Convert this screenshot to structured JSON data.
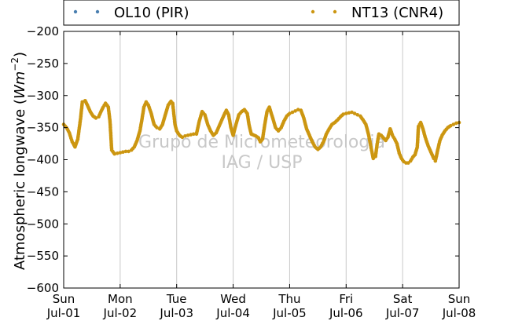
{
  "chart_data": {
    "type": "scatter",
    "ylabel_text": "Atmospheric longwave (",
    "ylabel_unit": "Wm",
    "ylabel_exp": "−2",
    "ylabel_close": ")",
    "ylim": [
      -600,
      -200
    ],
    "yticks": [
      -200,
      -250,
      -300,
      -350,
      -400,
      -450,
      -500,
      -550,
      -600
    ],
    "ytick_labels": [
      "−200",
      "−250",
      "−300",
      "−350",
      "−400",
      "−450",
      "−500",
      "−550",
      "−600"
    ],
    "xlim": [
      0,
      7
    ],
    "xticks": [
      {
        "x": 0,
        "day": "Sun",
        "date": "Jul-01"
      },
      {
        "x": 1,
        "day": "Mon",
        "date": "Jul-02"
      },
      {
        "x": 2,
        "day": "Tue",
        "date": "Jul-03"
      },
      {
        "x": 3,
        "day": "Wed",
        "date": "Jul-04"
      },
      {
        "x": 4,
        "day": "Thu",
        "date": "Jul-05"
      },
      {
        "x": 5,
        "day": "Fri",
        "date": "Jul-06"
      },
      {
        "x": 6,
        "day": "Sat",
        "date": "Jul-07"
      },
      {
        "x": 7,
        "day": "Sun",
        "date": "Jul-08"
      }
    ],
    "grid": "vertical",
    "legend_position": "top",
    "watermark": [
      "Grupo de Micrometeorologia",
      "IAG / USP"
    ],
    "series": [
      {
        "name": "OL10 (PIR)",
        "color": "#4a7fb0",
        "points": []
      },
      {
        "name": "NT13 (CNR4)",
        "color": "#cc9611",
        "points": [
          [
            0.0,
            -345
          ],
          [
            0.05,
            -350
          ],
          [
            0.1,
            -358
          ],
          [
            0.15,
            -372
          ],
          [
            0.2,
            -380
          ],
          [
            0.25,
            -368
          ],
          [
            0.3,
            -335
          ],
          [
            0.33,
            -310
          ],
          [
            0.38,
            -308
          ],
          [
            0.42,
            -315
          ],
          [
            0.47,
            -325
          ],
          [
            0.52,
            -332
          ],
          [
            0.57,
            -335
          ],
          [
            0.62,
            -333
          ],
          [
            0.66,
            -325
          ],
          [
            0.7,
            -318
          ],
          [
            0.74,
            -312
          ],
          [
            0.79,
            -318
          ],
          [
            0.82,
            -340
          ],
          [
            0.85,
            -385
          ],
          [
            0.9,
            -391
          ],
          [
            0.95,
            -390
          ],
          [
            1.0,
            -389
          ],
          [
            1.05,
            -388
          ],
          [
            1.1,
            -387
          ],
          [
            1.15,
            -387
          ],
          [
            1.2,
            -385
          ],
          [
            1.25,
            -380
          ],
          [
            1.3,
            -370
          ],
          [
            1.35,
            -355
          ],
          [
            1.38,
            -340
          ],
          [
            1.42,
            -318
          ],
          [
            1.46,
            -310
          ],
          [
            1.5,
            -315
          ],
          [
            1.55,
            -328
          ],
          [
            1.6,
            -345
          ],
          [
            1.65,
            -350
          ],
          [
            1.7,
            -352
          ],
          [
            1.75,
            -345
          ],
          [
            1.8,
            -330
          ],
          [
            1.85,
            -315
          ],
          [
            1.9,
            -309
          ],
          [
            1.93,
            -312
          ],
          [
            1.97,
            -345
          ],
          [
            2.0,
            -355
          ],
          [
            2.05,
            -362
          ],
          [
            2.1,
            -365
          ],
          [
            2.15,
            -363
          ],
          [
            2.2,
            -362
          ],
          [
            2.25,
            -361
          ],
          [
            2.3,
            -360
          ],
          [
            2.35,
            -360
          ],
          [
            2.4,
            -340
          ],
          [
            2.45,
            -325
          ],
          [
            2.5,
            -330
          ],
          [
            2.55,
            -345
          ],
          [
            2.6,
            -355
          ],
          [
            2.65,
            -362
          ],
          [
            2.7,
            -358
          ],
          [
            2.75,
            -348
          ],
          [
            2.8,
            -338
          ],
          [
            2.85,
            -328
          ],
          [
            2.88,
            -323
          ],
          [
            2.92,
            -330
          ],
          [
            2.96,
            -350
          ],
          [
            3.0,
            -362
          ],
          [
            3.05,
            -345
          ],
          [
            3.1,
            -330
          ],
          [
            3.15,
            -325
          ],
          [
            3.2,
            -322
          ],
          [
            3.25,
            -328
          ],
          [
            3.28,
            -345
          ],
          [
            3.32,
            -360
          ],
          [
            3.4,
            -363
          ],
          [
            3.45,
            -366
          ],
          [
            3.48,
            -372
          ],
          [
            3.52,
            -368
          ],
          [
            3.56,
            -345
          ],
          [
            3.6,
            -325
          ],
          [
            3.64,
            -318
          ],
          [
            3.7,
            -335
          ],
          [
            3.75,
            -350
          ],
          [
            3.8,
            -355
          ],
          [
            3.85,
            -350
          ],
          [
            3.9,
            -340
          ],
          [
            3.95,
            -332
          ],
          [
            4.0,
            -328
          ],
          [
            4.05,
            -326
          ],
          [
            4.1,
            -324
          ],
          [
            4.15,
            -322
          ],
          [
            4.2,
            -323
          ],
          [
            4.25,
            -335
          ],
          [
            4.3,
            -352
          ],
          [
            4.35,
            -362
          ],
          [
            4.4,
            -372
          ],
          [
            4.45,
            -380
          ],
          [
            4.5,
            -384
          ],
          [
            4.55,
            -380
          ],
          [
            4.6,
            -372
          ],
          [
            4.65,
            -360
          ],
          [
            4.7,
            -352
          ],
          [
            4.75,
            -345
          ],
          [
            4.8,
            -342
          ],
          [
            4.85,
            -338
          ],
          [
            4.9,
            -333
          ],
          [
            4.95,
            -329
          ],
          [
            5.0,
            -328
          ],
          [
            5.05,
            -327
          ],
          [
            5.1,
            -326
          ],
          [
            5.15,
            -328
          ],
          [
            5.2,
            -330
          ],
          [
            5.25,
            -332
          ],
          [
            5.3,
            -338
          ],
          [
            5.35,
            -345
          ],
          [
            5.4,
            -362
          ],
          [
            5.45,
            -385
          ],
          [
            5.48,
            -398
          ],
          [
            5.52,
            -395
          ],
          [
            5.55,
            -375
          ],
          [
            5.58,
            -360
          ],
          [
            5.62,
            -362
          ],
          [
            5.66,
            -366
          ],
          [
            5.7,
            -370
          ],
          [
            5.74,
            -365
          ],
          [
            5.78,
            -352
          ],
          [
            5.82,
            -362
          ],
          [
            5.86,
            -368
          ],
          [
            5.9,
            -375
          ],
          [
            5.94,
            -390
          ],
          [
            5.98,
            -398
          ],
          [
            6.02,
            -403
          ],
          [
            6.06,
            -405
          ],
          [
            6.1,
            -405
          ],
          [
            6.14,
            -402
          ],
          [
            6.18,
            -396
          ],
          [
            6.22,
            -392
          ],
          [
            6.26,
            -380
          ],
          [
            6.28,
            -348
          ],
          [
            6.32,
            -342
          ],
          [
            6.36,
            -352
          ],
          [
            6.4,
            -365
          ],
          [
            6.45,
            -378
          ],
          [
            6.5,
            -388
          ],
          [
            6.55,
            -398
          ],
          [
            6.58,
            -402
          ],
          [
            6.62,
            -385
          ],
          [
            6.66,
            -370
          ],
          [
            6.7,
            -362
          ],
          [
            6.75,
            -355
          ],
          [
            6.8,
            -350
          ],
          [
            6.85,
            -347
          ],
          [
            6.9,
            -345
          ],
          [
            6.95,
            -343
          ],
          [
            7.0,
            -342
          ]
        ]
      }
    ]
  }
}
